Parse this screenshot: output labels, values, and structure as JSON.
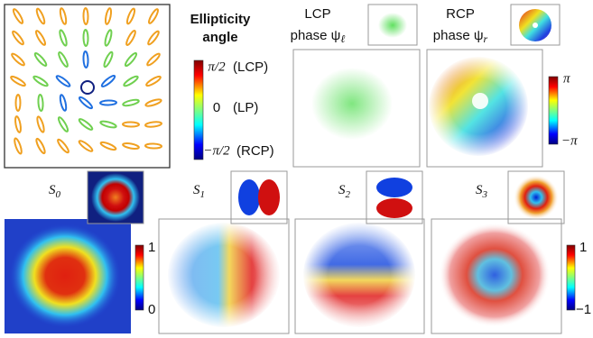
{
  "ellipse_panel": {
    "title_lines": [
      "Ellipticity",
      "angle"
    ],
    "colorbar": {
      "labels": [
        {
          "label": "π/2",
          "note": "(LCP)"
        },
        {
          "label": "0",
          "note": "(LP)"
        },
        {
          "label": "−π/2",
          "note": "(RCP)"
        }
      ]
    }
  },
  "phase_panels": [
    {
      "title_lines": [
        "LCP",
        "phase ψ"
      ],
      "subscript": "ℓ"
    },
    {
      "title_lines": [
        "RCP",
        "phase ψ"
      ],
      "subscript": "r"
    }
  ],
  "phase_colorbar": {
    "top": "π",
    "bottom": "−π"
  },
  "stokes_panels": [
    {
      "symbol": "S",
      "subscript": "0"
    },
    {
      "symbol": "S",
      "subscript": "1"
    },
    {
      "symbol": "S",
      "subscript": "2"
    },
    {
      "symbol": "S",
      "subscript": "3"
    }
  ],
  "stokes_colorbars": [
    {
      "top": "1",
      "bottom": "0"
    },
    {
      "top": "1",
      "bottom": "−1"
    }
  ]
}
